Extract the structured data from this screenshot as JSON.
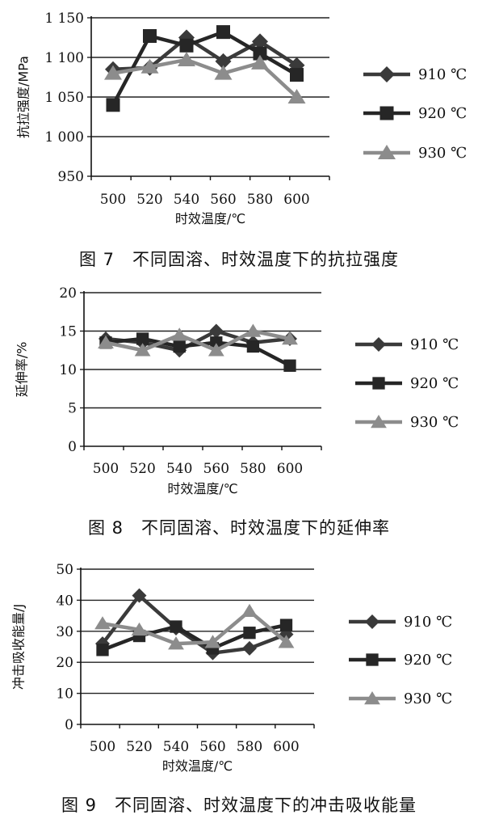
{
  "chart_data": [
    {
      "type": "line",
      "xlabel": "时效温度/℃",
      "ylabel": "抗拉强度/MPa",
      "categories": [
        "500",
        "520",
        "540",
        "560",
        "580",
        "600"
      ],
      "y_ticks": [
        "950",
        "1 000",
        "1 050",
        "1 100",
        "1 150"
      ],
      "ylim": [
        950,
        1150
      ],
      "grid": true,
      "legend_position": "right",
      "series": [
        {
          "name": "910 ℃",
          "values": [
            1085,
            1087,
            1125,
            1095,
            1120,
            1090
          ],
          "color": "#3a3a3a",
          "marker": "diamond"
        },
        {
          "name": "920 ℃",
          "values": [
            1040,
            1127,
            1115,
            1132,
            1105,
            1078
          ],
          "color": "#262626",
          "marker": "square"
        },
        {
          "name": "930 ℃",
          "values": [
            1080,
            1088,
            1097,
            1080,
            1093,
            1050
          ],
          "color": "#8c8c8c",
          "marker": "triangle"
        }
      ]
    },
    {
      "type": "line",
      "xlabel": "时效温度/℃",
      "ylabel": "延伸率/%",
      "categories": [
        "500",
        "520",
        "540",
        "560",
        "580",
        "600"
      ],
      "y_ticks": [
        "0",
        "5",
        "10",
        "15",
        "20"
      ],
      "ylim": [
        0,
        20
      ],
      "grid": true,
      "legend_position": "right",
      "series": [
        {
          "name": "910 ℃",
          "values": [
            14,
            13.5,
            12.5,
            15,
            13.5,
            14
          ],
          "color": "#3a3a3a",
          "marker": "diamond"
        },
        {
          "name": "920 ℃",
          "values": [
            13.5,
            14,
            13,
            13.5,
            13,
            10.5
          ],
          "color": "#262626",
          "marker": "square"
        },
        {
          "name": "930 ℃",
          "values": [
            13.5,
            12.5,
            14.5,
            12.5,
            15,
            14
          ],
          "color": "#8c8c8c",
          "marker": "triangle"
        }
      ]
    },
    {
      "type": "line",
      "xlabel": "时效温度/℃",
      "ylabel": "冲击吸收能量/J",
      "categories": [
        "500",
        "520",
        "540",
        "560",
        "580",
        "600"
      ],
      "y_ticks": [
        "0",
        "10",
        "20",
        "30",
        "40",
        "50"
      ],
      "ylim": [
        0,
        50
      ],
      "grid": true,
      "legend_position": "right",
      "series": [
        {
          "name": "910 ℃",
          "values": [
            26,
            41.5,
            31,
            23,
            24.5,
            29
          ],
          "color": "#3a3a3a",
          "marker": "diamond"
        },
        {
          "name": "920 ℃",
          "values": [
            24,
            28.5,
            31.5,
            24.5,
            29.5,
            32
          ],
          "color": "#262626",
          "marker": "square"
        },
        {
          "name": "930 ℃",
          "values": [
            32.5,
            30.5,
            26,
            26.5,
            36.5,
            26.5
          ],
          "color": "#8c8c8c",
          "marker": "triangle"
        }
      ]
    }
  ],
  "captions": [
    "图 7　不同固溶、时效温度下的抗拉强度",
    "图 8　不同固溶、时效温度下的延伸率",
    "图 9　不同固溶、时效温度下的冲击吸收能量"
  ]
}
